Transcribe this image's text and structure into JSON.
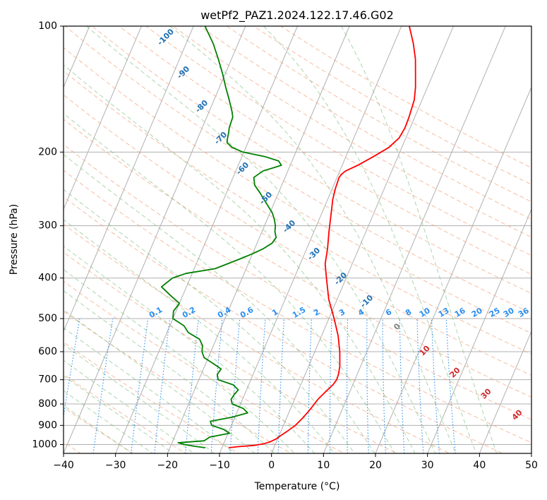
{
  "chart_data": {
    "type": "line",
    "title": "wetPf2_PAZ1.2024.122.17.46.G02",
    "xlabel": "Temperature (°C)",
    "ylabel": "Pressure (hPa)",
    "xlim": [
      -40,
      50
    ],
    "ylim": [
      1050,
      100
    ],
    "y_scale": "log",
    "skew": 35,
    "grid": true,
    "x_ticks": [
      "−40",
      "−30",
      "−20",
      "−10",
      "0",
      "10",
      "20",
      "30",
      "40",
      "50"
    ],
    "y_ticks": [
      "100",
      "200",
      "300",
      "400",
      "500",
      "600",
      "700",
      "800",
      "900",
      "1000"
    ],
    "series": [
      {
        "color": "#ff0000",
        "pressure": [
          1018,
          1012,
          1005,
          995,
          985,
          970,
          950,
          930,
          900,
          860,
          820,
          780,
          750,
          720,
          700,
          680,
          650,
          600,
          550,
          500,
          450,
          400,
          370,
          340,
          310,
          280,
          260,
          245,
          230,
          226,
          222,
          215,
          205,
          195,
          185,
          175,
          165,
          150,
          140,
          130,
          120,
          110,
          100
        ],
        "temperature": [
          -8.7,
          -7.0,
          -4.0,
          -2.2,
          -1.2,
          -0.3,
          0.4,
          1.2,
          2.3,
          3.2,
          3.9,
          4.5,
          5.3,
          6.2,
          6.5,
          6.4,
          6.0,
          4.8,
          3.2,
          1.0,
          -1.6,
          -3.8,
          -5.2,
          -6.0,
          -7.1,
          -8.2,
          -9.0,
          -9.4,
          -9.6,
          -9.4,
          -8.9,
          -7.0,
          -4.7,
          -2.5,
          -1.3,
          -1.0,
          -1.1,
          -1.5,
          -2.3,
          -3.4,
          -4.6,
          -6.3,
          -8.5
        ]
      },
      {
        "color": "#008000",
        "pressure": [
          1018,
          1010,
          1000,
          990,
          980,
          960,
          940,
          920,
          900,
          880,
          860,
          840,
          820,
          800,
          780,
          760,
          740,
          720,
          700,
          680,
          660,
          640,
          620,
          600,
          580,
          560,
          540,
          520,
          500,
          480,
          460,
          440,
          420,
          400,
          390,
          380,
          370,
          360,
          350,
          340,
          330,
          320,
          310,
          300,
          290,
          280,
          270,
          260,
          250,
          240,
          230,
          222,
          215,
          210,
          205,
          200,
          195,
          190,
          185,
          180,
          175,
          170,
          165,
          160,
          150,
          140,
          130,
          120,
          110,
          100
        ],
        "temperature": [
          -13.2,
          -15.3,
          -17.5,
          -18.8,
          -14.0,
          -13.2,
          -9.7,
          -11.2,
          -13.8,
          -14.4,
          -10.5,
          -7.9,
          -9.1,
          -11.6,
          -12.2,
          -12.0,
          -11.6,
          -13.0,
          -16.3,
          -16.9,
          -16.6,
          -18.6,
          -20.8,
          -21.7,
          -22.1,
          -23.2,
          -25.9,
          -27.3,
          -30.0,
          -30.5,
          -30.0,
          -32.4,
          -34.8,
          -33.4,
          -31.2,
          -26.0,
          -24.0,
          -22.0,
          -20.0,
          -18.3,
          -17.1,
          -16.8,
          -17.5,
          -17.9,
          -18.6,
          -19.5,
          -20.8,
          -22.2,
          -23.6,
          -25.2,
          -26.0,
          -24.8,
          -21.7,
          -22.6,
          -25.6,
          -30.2,
          -32.6,
          -34.0,
          -34.3,
          -34.5,
          -34.8,
          -34.9,
          -35.0,
          -35.6,
          -37.1,
          -38.8,
          -40.5,
          -42.5,
          -44.8,
          -47.8
        ]
      }
    ],
    "dry_adiabat_labels": [
      "-100",
      "-90",
      "-80",
      "-70",
      "-60",
      "-50",
      "-40",
      "-30",
      "-20",
      "-10"
    ],
    "moist_adiabat_labels": [
      "0",
      "10",
      "20",
      "30",
      "40"
    ],
    "mixing_ratio_labels": [
      "0.1",
      "0.2",
      "0.4",
      "0.6",
      "1",
      "1.5",
      "2",
      "3",
      "4",
      "6",
      "8",
      "10",
      "13",
      "16",
      "20",
      "25",
      "30",
      "36"
    ],
    "mixing_ratio_values": [
      0.1,
      0.2,
      0.4,
      0.6,
      1,
      1.5,
      2,
      3,
      4,
      6,
      8,
      10,
      13,
      16,
      20,
      25,
      30,
      36
    ]
  }
}
